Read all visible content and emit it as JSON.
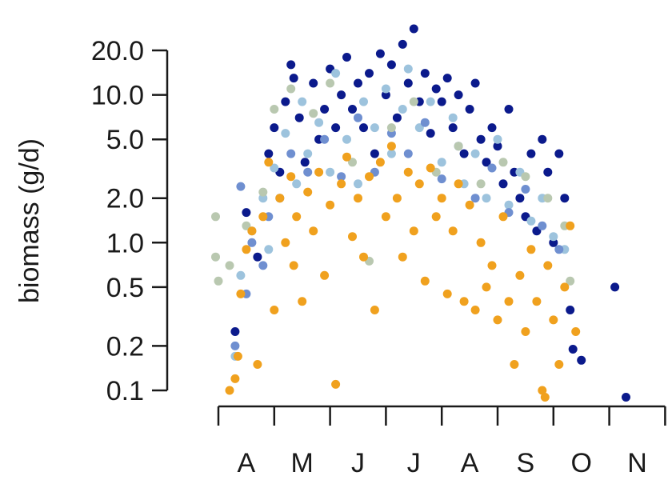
{
  "chart_data": {
    "type": "scatter",
    "title": "",
    "xlabel": "",
    "ylabel": "biomass (g/d)",
    "y_scale": "log",
    "ylim": [
      0.1,
      35
    ],
    "y_ticks": [
      {
        "value": 0.1,
        "label": "0.1"
      },
      {
        "value": 0.2,
        "label": "0.2"
      },
      {
        "value": 0.5,
        "label": "0.5"
      },
      {
        "value": 1.0,
        "label": "1.0"
      },
      {
        "value": 2.0,
        "label": "2.0"
      },
      {
        "value": 5.0,
        "label": "5.0"
      },
      {
        "value": 10.0,
        "label": "10.0"
      },
      {
        "value": 20.0,
        "label": "20.0"
      }
    ],
    "x_months": [
      "A",
      "M",
      "J",
      "J",
      "A",
      "S",
      "O",
      "N"
    ],
    "grid": false,
    "legend": "none",
    "colors": {
      "navy": "#0b1a8c",
      "light_blue": "#9dc3dd",
      "mid_blue": "#6f8fd0",
      "sage": "#b9c8b0",
      "orange": "#f0a11e"
    },
    "series": [
      {
        "color": "navy",
        "points": [
          [
            4.3,
            0.25
          ],
          [
            4.5,
            1.6
          ],
          [
            4.7,
            0.8
          ],
          [
            4.9,
            4.0
          ],
          [
            5.0,
            6.0
          ],
          [
            5.1,
            3.0
          ],
          [
            5.2,
            9.0
          ],
          [
            5.3,
            16.0
          ],
          [
            5.35,
            13.0
          ],
          [
            5.45,
            7.0
          ],
          [
            5.55,
            3.5
          ],
          [
            5.7,
            12.0
          ],
          [
            5.8,
            5.0
          ],
          [
            5.9,
            8.0
          ],
          [
            6.0,
            15.0
          ],
          [
            6.1,
            6.0
          ],
          [
            6.2,
            10.0
          ],
          [
            6.3,
            18.0
          ],
          [
            6.4,
            8.0
          ],
          [
            6.5,
            12.0
          ],
          [
            6.6,
            6.0
          ],
          [
            6.7,
            14.0
          ],
          [
            6.8,
            4.0
          ],
          [
            6.9,
            19.0
          ],
          [
            7.0,
            10.0
          ],
          [
            7.1,
            16.0
          ],
          [
            7.2,
            7.0
          ],
          [
            7.3,
            22.0
          ],
          [
            7.4,
            12.0
          ],
          [
            7.5,
            28.0
          ],
          [
            7.6,
            9.0
          ],
          [
            7.7,
            14.0
          ],
          [
            7.8,
            5.5
          ],
          [
            7.9,
            11.0
          ],
          [
            8.0,
            9.0
          ],
          [
            8.1,
            13.0
          ],
          [
            8.2,
            6.0
          ],
          [
            8.3,
            10.0
          ],
          [
            8.4,
            4.0
          ],
          [
            8.5,
            8.0
          ],
          [
            8.6,
            12.0
          ],
          [
            8.7,
            5.0
          ],
          [
            8.8,
            3.5
          ],
          [
            8.9,
            6.0
          ],
          [
            9.0,
            4.5
          ],
          [
            9.1,
            2.5
          ],
          [
            9.2,
            8.0
          ],
          [
            9.3,
            3.0
          ],
          [
            9.4,
            2.0
          ],
          [
            9.5,
            1.5
          ],
          [
            9.6,
            4.0
          ],
          [
            9.7,
            1.2
          ],
          [
            9.8,
            5.0
          ],
          [
            9.9,
            3.0
          ],
          [
            10.0,
            1.0
          ],
          [
            10.1,
            4.0
          ],
          [
            10.2,
            2.0
          ],
          [
            10.3,
            0.35
          ],
          [
            10.35,
            0.19
          ],
          [
            10.5,
            0.16
          ],
          [
            11.1,
            0.5
          ],
          [
            11.3,
            0.09
          ]
        ]
      },
      {
        "color": "light_blue",
        "points": [
          [
            4.3,
            0.17
          ],
          [
            4.4,
            0.6
          ],
          [
            4.6,
            1.2
          ],
          [
            4.8,
            2.0
          ],
          [
            4.9,
            0.9
          ],
          [
            5.0,
            3.2
          ],
          [
            5.2,
            5.5
          ],
          [
            5.4,
            2.5
          ],
          [
            5.5,
            9.0
          ],
          [
            5.6,
            4.0
          ],
          [
            5.8,
            6.5
          ],
          [
            6.0,
            3.0
          ],
          [
            6.1,
            14.0
          ],
          [
            6.3,
            5.0
          ],
          [
            6.5,
            2.5
          ],
          [
            6.6,
            9.0
          ],
          [
            6.8,
            6.0
          ],
          [
            7.0,
            11.0
          ],
          [
            7.1,
            4.0
          ],
          [
            7.3,
            8.0
          ],
          [
            7.4,
            15.0
          ],
          [
            7.6,
            6.0
          ],
          [
            7.8,
            9.0
          ],
          [
            8.0,
            3.5
          ],
          [
            8.2,
            7.0
          ],
          [
            8.4,
            2.5
          ],
          [
            8.6,
            4.0
          ],
          [
            8.8,
            2.0
          ],
          [
            9.0,
            5.0
          ],
          [
            9.2,
            1.8
          ],
          [
            9.4,
            3.0
          ],
          [
            9.6,
            1.4
          ],
          [
            9.8,
            2.0
          ],
          [
            10.0,
            1.1
          ],
          [
            10.2,
            0.9
          ]
        ]
      },
      {
        "color": "mid_blue",
        "points": [
          [
            4.3,
            0.2
          ],
          [
            4.4,
            2.4
          ],
          [
            4.5,
            0.45
          ],
          [
            4.6,
            1.0
          ],
          [
            4.8,
            0.7
          ],
          [
            4.9,
            1.5
          ],
          [
            5.1,
            2.0
          ],
          [
            5.3,
            4.0
          ],
          [
            5.6,
            3.0
          ],
          [
            5.9,
            5.0
          ],
          [
            6.2,
            2.8
          ],
          [
            6.5,
            7.0
          ],
          [
            6.8,
            3.0
          ],
          [
            7.1,
            5.5
          ],
          [
            7.4,
            4.0
          ],
          [
            7.7,
            6.5
          ],
          [
            8.0,
            2.7
          ],
          [
            8.3,
            4.5
          ],
          [
            8.6,
            2.0
          ],
          [
            8.9,
            3.2
          ],
          [
            9.2,
            1.6
          ],
          [
            9.5,
            2.3
          ],
          [
            9.8,
            1.3
          ],
          [
            10.1,
            0.9
          ]
        ]
      },
      {
        "color": "sage",
        "points": [
          [
            3.95,
            1.5
          ],
          [
            3.95,
            0.8
          ],
          [
            4.0,
            0.55
          ],
          [
            4.2,
            0.7
          ],
          [
            4.5,
            1.3
          ],
          [
            4.8,
            2.2
          ],
          [
            5.0,
            8.0
          ],
          [
            5.3,
            11.0
          ],
          [
            5.7,
            7.5
          ],
          [
            6.0,
            12.0
          ],
          [
            6.4,
            3.5
          ],
          [
            6.7,
            0.75
          ],
          [
            7.1,
            6.0
          ],
          [
            7.5,
            9.0
          ],
          [
            7.9,
            3.0
          ],
          [
            8.3,
            4.5
          ],
          [
            8.7,
            2.5
          ],
          [
            9.1,
            3.5
          ],
          [
            9.5,
            2.8
          ],
          [
            9.9,
            2.0
          ],
          [
            10.2,
            1.3
          ],
          [
            10.3,
            0.55
          ]
        ]
      },
      {
        "color": "orange",
        "points": [
          [
            4.2,
            0.1
          ],
          [
            4.3,
            0.12
          ],
          [
            4.35,
            0.17
          ],
          [
            4.4,
            0.45
          ],
          [
            4.5,
            0.9
          ],
          [
            4.6,
            1.2
          ],
          [
            4.7,
            0.15
          ],
          [
            4.8,
            1.5
          ],
          [
            4.9,
            3.5
          ],
          [
            5.0,
            0.35
          ],
          [
            5.1,
            2.0
          ],
          [
            5.2,
            1.0
          ],
          [
            5.3,
            2.8
          ],
          [
            5.35,
            0.7
          ],
          [
            5.4,
            1.5
          ],
          [
            5.5,
            0.4
          ],
          [
            5.6,
            2.2
          ],
          [
            5.7,
            1.2
          ],
          [
            5.8,
            3.0
          ],
          [
            5.9,
            0.6
          ],
          [
            6.0,
            1.8
          ],
          [
            6.1,
            0.11
          ],
          [
            6.2,
            2.5
          ],
          [
            6.3,
            3.8
          ],
          [
            6.4,
            1.1
          ],
          [
            6.5,
            2.0
          ],
          [
            6.6,
            0.8
          ],
          [
            6.7,
            2.8
          ],
          [
            6.8,
            0.35
          ],
          [
            6.9,
            3.5
          ],
          [
            7.0,
            1.5
          ],
          [
            7.1,
            4.5
          ],
          [
            7.2,
            2.0
          ],
          [
            7.3,
            0.8
          ],
          [
            7.4,
            3.0
          ],
          [
            7.5,
            1.2
          ],
          [
            7.6,
            2.5
          ],
          [
            7.7,
            0.55
          ],
          [
            7.8,
            3.2
          ],
          [
            7.9,
            1.5
          ],
          [
            8.0,
            2.0
          ],
          [
            8.1,
            0.45
          ],
          [
            8.2,
            1.2
          ],
          [
            8.3,
            2.5
          ],
          [
            8.4,
            0.4
          ],
          [
            8.5,
            1.8
          ],
          [
            8.6,
            0.35
          ],
          [
            8.7,
            1.0
          ],
          [
            8.8,
            0.5
          ],
          [
            8.9,
            0.7
          ],
          [
            9.0,
            0.3
          ],
          [
            9.1,
            1.5
          ],
          [
            9.2,
            0.4
          ],
          [
            9.3,
            0.15
          ],
          [
            9.4,
            0.6
          ],
          [
            9.5,
            0.25
          ],
          [
            9.6,
            0.9
          ],
          [
            9.7,
            0.4
          ],
          [
            9.8,
            0.1
          ],
          [
            9.85,
            0.09
          ],
          [
            9.9,
            0.7
          ],
          [
            10.0,
            0.3
          ],
          [
            10.1,
            0.15
          ],
          [
            10.2,
            0.5
          ],
          [
            10.3,
            1.3
          ],
          [
            10.4,
            0.25
          ]
        ]
      }
    ]
  }
}
